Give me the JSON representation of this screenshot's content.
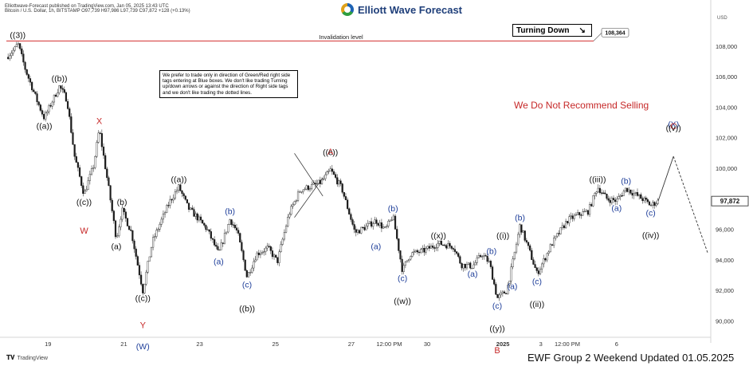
{
  "header": {
    "publisher_line": "Elliottwave-Forecast published on TradingView.com, Jan 05, 2025 13:43 UTC",
    "symbol_line": "Bitcoin / U.S. Dollar, 1h, BITSTAMP  O97,739  H97,986  L97,739  C97,872  +128 (+0.13%)"
  },
  "brand": {
    "name": "Elliott Wave Forecast",
    "colors": [
      "#1e63b5",
      "#2e9e3f",
      "#e0a21a"
    ]
  },
  "notice": "We prefer to trade only in direction of Green/Red right side tags entering at Blue boxes. We don't like trading Turning up/down arrows or against the direction of Right side tags and we don't like trading the dotted lines.",
  "turning_box": {
    "label": "Turning Down",
    "icon": "arrow-down-right-icon"
  },
  "tagline": "We Do Not Recommend Selling",
  "footer": "EWF Group 2 Weekend Updated 01.05.2025",
  "tv_logo": "TradingView",
  "chart_data": {
    "type": "candlestick",
    "currency": "USD",
    "ylim": [
      89000,
      110000
    ],
    "yticks": [
      90000,
      92000,
      94000,
      96000,
      98000,
      100000,
      102000,
      104000,
      106000,
      108000
    ],
    "ytick_labels": [
      "90,000",
      "92,000",
      "94,000",
      "96,000",
      "98,000",
      "100,000",
      "102,000",
      "104,000",
      "106,000",
      "108,000"
    ],
    "x_ticks": [
      {
        "label": "19",
        "t": 1.1
      },
      {
        "label": "21",
        "t": 3.1
      },
      {
        "label": "23",
        "t": 5.1
      },
      {
        "label": "25",
        "t": 7.1
      },
      {
        "label": "27",
        "t": 9.1
      },
      {
        "label": "12:00 PM",
        "t": 10.1
      },
      {
        "label": "30",
        "t": 11.1
      },
      {
        "label": "2025",
        "t": 13.1,
        "bold": true
      },
      {
        "label": "3",
        "t": 14.1
      },
      {
        "label": "12:00 PM",
        "t": 14.8
      },
      {
        "label": "6",
        "t": 16.1
      }
    ],
    "price_path": [
      [
        0.0,
        107300
      ],
      [
        0.25,
        107900
      ],
      [
        0.3,
        108250
      ],
      [
        0.5,
        106500
      ],
      [
        0.8,
        104500
      ],
      [
        1.0,
        103300
      ],
      [
        1.4,
        105400
      ],
      [
        1.6,
        104500
      ],
      [
        1.8,
        100800
      ],
      [
        2.05,
        98300
      ],
      [
        2.3,
        100200
      ],
      [
        2.45,
        102600
      ],
      [
        2.7,
        98700
      ],
      [
        2.9,
        95400
      ],
      [
        3.05,
        97300
      ],
      [
        3.3,
        95800
      ],
      [
        3.6,
        92000
      ],
      [
        3.85,
        95200
      ],
      [
        4.3,
        97800
      ],
      [
        4.55,
        98800
      ],
      [
        4.8,
        97400
      ],
      [
        5.0,
        96900
      ],
      [
        5.3,
        96000
      ],
      [
        5.6,
        94400
      ],
      [
        5.9,
        96700
      ],
      [
        6.1,
        95800
      ],
      [
        6.35,
        92900
      ],
      [
        6.6,
        94400
      ],
      [
        6.9,
        94800
      ],
      [
        7.15,
        93900
      ],
      [
        7.45,
        97000
      ],
      [
        7.75,
        98600
      ],
      [
        8.0,
        98800
      ],
      [
        8.3,
        99100
      ],
      [
        8.55,
        99900
      ],
      [
        8.85,
        98700
      ],
      [
        9.2,
        95800
      ],
      [
        9.5,
        96200
      ],
      [
        9.75,
        96600
      ],
      [
        10.0,
        96000
      ],
      [
        10.2,
        96900
      ],
      [
        10.45,
        93300
      ],
      [
        10.65,
        94400
      ],
      [
        11.0,
        94600
      ],
      [
        11.4,
        95100
      ],
      [
        11.8,
        94900
      ],
      [
        12.0,
        93700
      ],
      [
        12.3,
        93600
      ],
      [
        12.55,
        94400
      ],
      [
        12.75,
        93800
      ],
      [
        12.95,
        91500
      ],
      [
        13.2,
        92000
      ],
      [
        13.35,
        93700
      ],
      [
        13.55,
        96300
      ],
      [
        13.8,
        94600
      ],
      [
        14.0,
        93100
      ],
      [
        14.4,
        95100
      ],
      [
        14.8,
        96600
      ],
      [
        15.1,
        97000
      ],
      [
        15.35,
        97200
      ],
      [
        15.6,
        98800
      ],
      [
        15.85,
        98000
      ],
      [
        16.1,
        97900
      ],
      [
        16.35,
        98700
      ],
      [
        16.6,
        98300
      ],
      [
        16.85,
        97900
      ],
      [
        17.0,
        97600
      ],
      [
        17.2,
        97872
      ]
    ],
    "last_price": {
      "value": 97872,
      "label": "97,872"
    },
    "invalidation": {
      "value": 108364,
      "label": "108,364",
      "text": "Invalidation level",
      "color": "#d32f2f"
    },
    "projection": {
      "solid": [
        [
          17.2,
          97900
        ],
        [
          17.6,
          100800
        ]
      ],
      "dotted": [
        [
          17.6,
          100800
        ],
        [
          18.5,
          94500
        ]
      ]
    },
    "waves": [
      {
        "text": "((3))",
        "t": 0.3,
        "y": 108250,
        "pos": "above",
        "color": "#111111"
      },
      {
        "text": "((b))",
        "t": 1.4,
        "y": 105400,
        "pos": "above",
        "color": "#111111"
      },
      {
        "text": "((a))",
        "t": 1.0,
        "y": 103300,
        "pos": "below",
        "color": "#111111"
      },
      {
        "text": "X",
        "t": 2.45,
        "y": 102600,
        "pos": "above",
        "color": "#c62828"
      },
      {
        "text": "((c))",
        "t": 2.05,
        "y": 98300,
        "pos": "below",
        "color": "#111111"
      },
      {
        "text": "W",
        "t": 2.05,
        "y": 97100,
        "pos": "below",
        "color": "#c62828"
      },
      {
        "text": "(b)",
        "t": 3.05,
        "y": 97300,
        "pos": "above",
        "color": "#111111"
      },
      {
        "text": "(a)",
        "t": 2.9,
        "y": 95400,
        "pos": "below",
        "color": "#111111"
      },
      {
        "text": "((c))",
        "t": 3.6,
        "y": 92000,
        "pos": "below",
        "color": "#111111"
      },
      {
        "text": "Y",
        "t": 3.6,
        "y": 90900,
        "pos": "below",
        "color": "#c62828"
      },
      {
        "text": "(W)",
        "t": 3.6,
        "y": 90200,
        "pos": "below",
        "color": "#1f3f9a"
      },
      {
        "text": "((a))",
        "t": 4.55,
        "y": 98800,
        "pos": "above",
        "color": "#111111"
      },
      {
        "text": "(b)",
        "t": 5.9,
        "y": 96700,
        "pos": "above",
        "color": "#1f3f9a"
      },
      {
        "text": "(a)",
        "t": 5.6,
        "y": 94400,
        "pos": "below",
        "color": "#1f3f9a"
      },
      {
        "text": "(c)",
        "t": 6.35,
        "y": 92900,
        "pos": "below",
        "color": "#1f3f9a"
      },
      {
        "text": "((b))",
        "t": 6.35,
        "y": 92000,
        "pos": "below",
        "color": "#111111"
      },
      {
        "text": "A",
        "t": 8.55,
        "y": 100600,
        "pos": "above",
        "color": "#c62828"
      },
      {
        "text": "((c))",
        "t": 8.55,
        "y": 99900,
        "pos": "above",
        "color": "#111111"
      },
      {
        "text": "(b)",
        "t": 10.2,
        "y": 96900,
        "pos": "above",
        "color": "#1f3f9a"
      },
      {
        "text": "(a)",
        "t": 9.75,
        "y": 95400,
        "pos": "below",
        "color": "#1f3f9a"
      },
      {
        "text": "(c)",
        "t": 10.45,
        "y": 93300,
        "pos": "below",
        "color": "#1f3f9a"
      },
      {
        "text": "((w))",
        "t": 10.45,
        "y": 92500,
        "pos": "below",
        "color": "#111111"
      },
      {
        "text": "((x))",
        "t": 11.4,
        "y": 95100,
        "pos": "above",
        "color": "#111111"
      },
      {
        "text": "(a)",
        "t": 12.3,
        "y": 93600,
        "pos": "below",
        "color": "#1f3f9a"
      },
      {
        "text": "(b)",
        "t": 12.8,
        "y": 94100,
        "pos": "above",
        "color": "#1f3f9a"
      },
      {
        "text": "((i))",
        "t": 13.1,
        "y": 95100,
        "pos": "above",
        "color": "#111111"
      },
      {
        "text": "(c)",
        "t": 12.95,
        "y": 91500,
        "pos": "below",
        "color": "#1f3f9a"
      },
      {
        "text": "((y))",
        "t": 12.95,
        "y": 90700,
        "pos": "below",
        "color": "#111111"
      },
      {
        "text": "B",
        "t": 12.95,
        "y": 89950,
        "pos": "below",
        "color": "#c62828"
      },
      {
        "text": "(a)",
        "t": 13.35,
        "y": 92800,
        "pos": "below",
        "color": "#1f3f9a"
      },
      {
        "text": "(b)",
        "t": 13.55,
        "y": 96300,
        "pos": "above",
        "color": "#1f3f9a"
      },
      {
        "text": "(c)",
        "t": 14.0,
        "y": 93100,
        "pos": "below",
        "color": "#1f3f9a"
      },
      {
        "text": "((ii))",
        "t": 14.0,
        "y": 92300,
        "pos": "below",
        "color": "#111111"
      },
      {
        "text": "((iii))",
        "t": 15.6,
        "y": 98800,
        "pos": "above",
        "color": "#111111"
      },
      {
        "text": "(b)",
        "t": 16.35,
        "y": 98700,
        "pos": "above",
        "color": "#1f3f9a"
      },
      {
        "text": "(a)",
        "t": 16.1,
        "y": 97900,
        "pos": "below",
        "color": "#1f3f9a"
      },
      {
        "text": "(c)",
        "t": 17.0,
        "y": 97600,
        "pos": "below",
        "color": "#1f3f9a"
      },
      {
        "text": "((iv))",
        "t": 17.0,
        "y": 96800,
        "pos": "below",
        "color": "#111111"
      },
      {
        "text": "(X)",
        "t": 17.6,
        "y": 102400,
        "pos": "above",
        "color": "#1f3f9a"
      },
      {
        "text": "C",
        "t": 17.6,
        "y": 101600,
        "pos": "above",
        "color": "#c62828"
      },
      {
        "text": "((v))",
        "t": 17.6,
        "y": 100800,
        "pos": "above",
        "color": "#111111"
      }
    ]
  }
}
